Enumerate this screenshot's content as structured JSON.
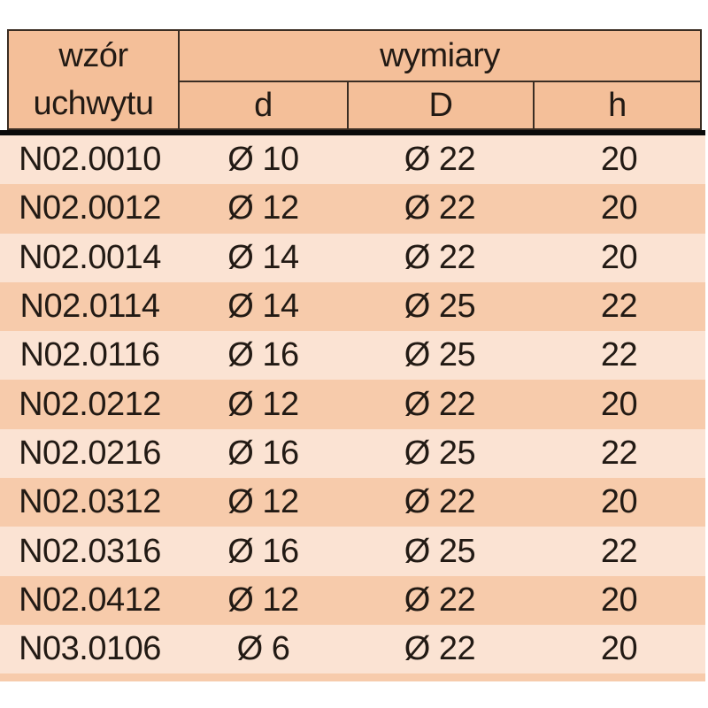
{
  "table": {
    "header": {
      "pattern_col_line1": "wzór",
      "pattern_col_line2": "uchwytu",
      "dimensions_group_label": "wymiary",
      "sub_columns": [
        "d",
        "D",
        "h"
      ]
    },
    "rows": [
      {
        "code": "N02.0010",
        "d": "Ø 10",
        "D": "Ø 22",
        "h": "20"
      },
      {
        "code": "N02.0012",
        "d": "Ø 12",
        "D": "Ø 22",
        "h": "20"
      },
      {
        "code": "N02.0014",
        "d": "Ø 14",
        "D": "Ø 22",
        "h": "20"
      },
      {
        "code": "N02.0114",
        "d": "Ø 14",
        "D": "Ø 25",
        "h": "22"
      },
      {
        "code": "N02.0116",
        "d": "Ø 16",
        "D": "Ø 25",
        "h": "22"
      },
      {
        "code": "N02.0212",
        "d": "Ø 12",
        "D": "Ø 22",
        "h": "20"
      },
      {
        "code": "N02.0216",
        "d": "Ø 16",
        "D": "Ø 25",
        "h": "22"
      },
      {
        "code": "N02.0312",
        "d": "Ø 12",
        "D": "Ø 22",
        "h": "20"
      },
      {
        "code": "N02.0316",
        "d": "Ø 16",
        "D": "Ø 25",
        "h": "22"
      },
      {
        "code": "N02.0412",
        "d": "Ø 12",
        "D": "Ø 22",
        "h": "20"
      },
      {
        "code": "N03.0106",
        "d": "Ø 6",
        "D": "Ø 22",
        "h": "20"
      }
    ],
    "colors": {
      "header_bg": "#f4bf99",
      "row_light_bg": "#fbe3d3",
      "row_dark_bg": "#f7cbab",
      "border": "#3a2d23",
      "thick_rule": "#0a0a0a",
      "text": "#221a14"
    }
  }
}
